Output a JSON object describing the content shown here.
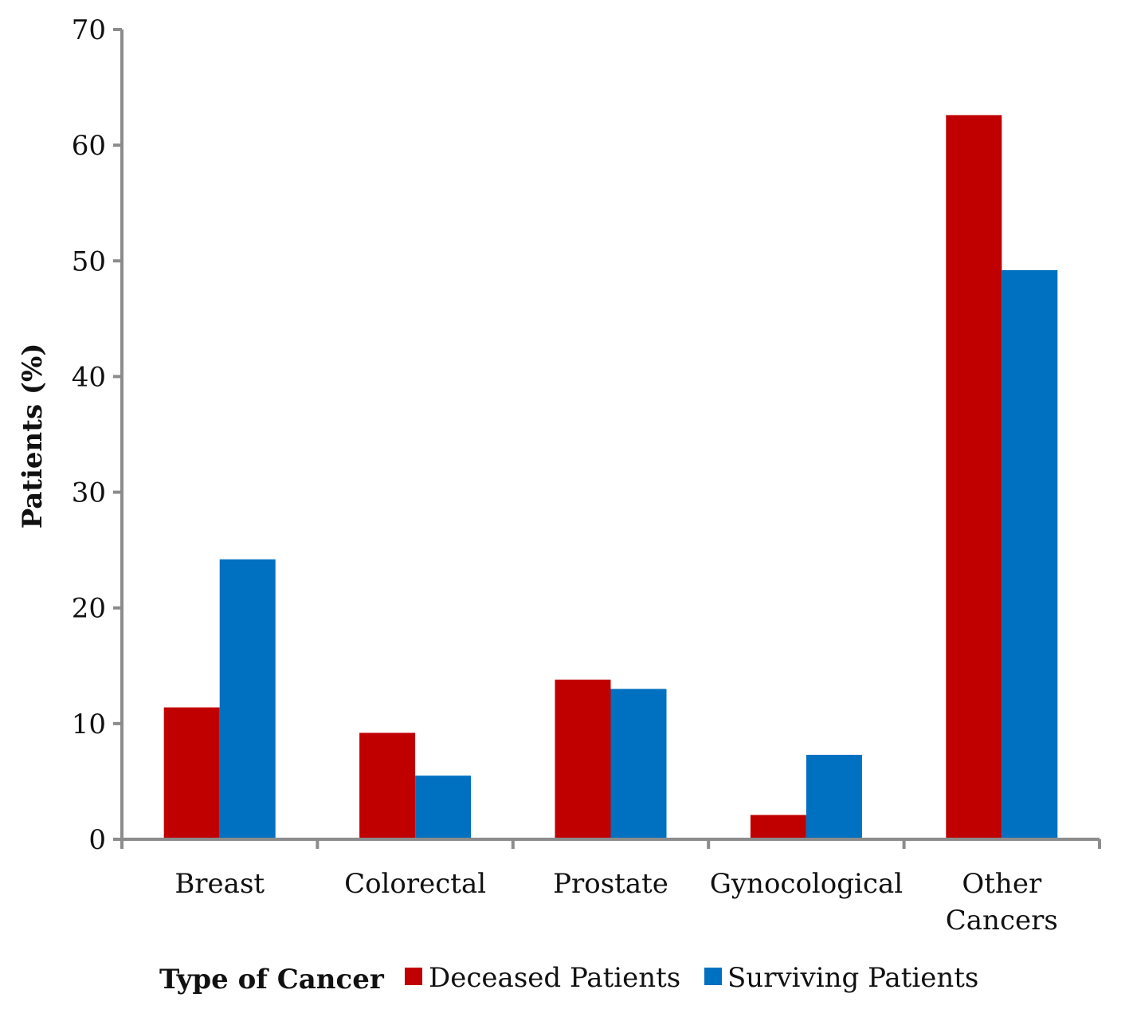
{
  "chart_data": {
    "type": "bar",
    "categories": [
      [
        "Breast"
      ],
      [
        "Colorectal"
      ],
      [
        "Prostate"
      ],
      [
        "Gynocological"
      ],
      [
        "Other",
        "Cancers"
      ]
    ],
    "series": [
      {
        "name": "Deceased Patients",
        "color": "#c00000",
        "values": [
          11.4,
          9.2,
          13.8,
          2.1,
          62.6
        ]
      },
      {
        "name": "Surviving Patients",
        "color": "#0070c0",
        "values": [
          24.2,
          5.5,
          13.0,
          7.3,
          49.2
        ]
      }
    ],
    "title": "",
    "xlabel": "Type of Cancer",
    "ylabel": "Patients (%)",
    "ylim": [
      0,
      70
    ],
    "yticks": [
      0,
      10,
      20,
      30,
      40,
      50,
      60,
      70
    ],
    "grid": false,
    "legend": "bottom",
    "axis_color": "#8c8c8c"
  }
}
